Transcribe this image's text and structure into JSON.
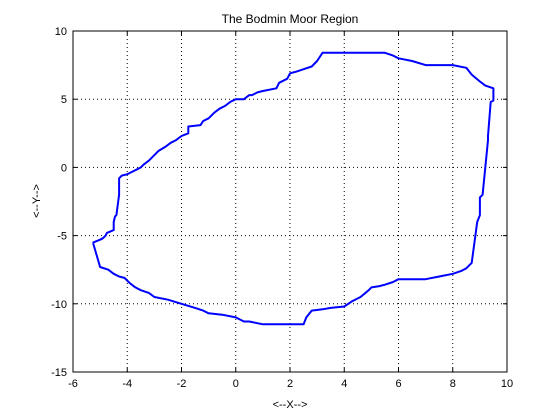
{
  "chart_data": {
    "type": "line",
    "title": "The Bodmin Moor Region",
    "xlabel": "<--X-->",
    "ylabel": "<--Y-->",
    "xlim": [
      -6,
      10
    ],
    "ylim": [
      -15,
      10
    ],
    "xticks": [
      -6,
      -4,
      -2,
      0,
      2,
      4,
      6,
      8,
      10
    ],
    "yticks": [
      -15,
      -10,
      -5,
      0,
      5,
      10
    ],
    "grid": true,
    "grid_style": "dotted",
    "series": [
      {
        "color": "#0000ff",
        "x": [
          -5.25,
          -5.25,
          -5.0,
          -4.9,
          -4.8,
          -4.75,
          -4.5,
          -4.5,
          -4.45,
          -4.4,
          -4.3,
          -4.3,
          -4.2,
          -4.0,
          -3.8,
          -3.6,
          -3.5,
          -3.4,
          -3.2,
          -3.0,
          -2.85,
          -2.6,
          -2.4,
          -2.2,
          -2.0,
          -1.75,
          -1.75,
          -1.3,
          -1.2,
          -1.0,
          -0.8,
          -0.6,
          -0.4,
          -0.2,
          0.0,
          0.3,
          0.5,
          0.6,
          0.8,
          1.0,
          1.5,
          1.6,
          1.9,
          2.0,
          2.2,
          2.5,
          2.8,
          3.0,
          3.2,
          3.5,
          4.0,
          5.0,
          5.5,
          5.8,
          6.0,
          6.5,
          7.0,
          8.0,
          8.5,
          8.7,
          9.0,
          9.2,
          9.5,
          9.5,
          9.4,
          9.3,
          9.3,
          9.2,
          9.1,
          9.0,
          9.0,
          8.9,
          8.7,
          8.6,
          8.5,
          8.3,
          8.0,
          7.5,
          7.0,
          6.5,
          6.0,
          5.8,
          5.5,
          5.3,
          5.0,
          4.9,
          4.6,
          4.3,
          4.0,
          3.5,
          3.2,
          2.8,
          2.6,
          2.5,
          2.0,
          1.5,
          1.0,
          0.5,
          0.3,
          0.0,
          -0.5,
          -1.0,
          -1.2,
          -1.5,
          -2.0,
          -2.5,
          -3.0,
          -3.2,
          -3.5,
          -3.7,
          -3.9,
          -4.1,
          -4.3,
          -4.5,
          -4.7,
          -5.0,
          -5.25
        ],
        "y": [
          -5.6,
          -5.5,
          -5.3,
          -5.2,
          -5.0,
          -4.8,
          -4.6,
          -4.0,
          -3.6,
          -3.5,
          -2.0,
          -0.8,
          -0.6,
          -0.5,
          -0.3,
          -0.1,
          0.0,
          0.2,
          0.5,
          0.9,
          1.2,
          1.5,
          1.8,
          2.0,
          2.3,
          2.5,
          3.0,
          3.1,
          3.4,
          3.6,
          4.0,
          4.3,
          4.5,
          4.8,
          5.0,
          5.0,
          5.3,
          5.3,
          5.5,
          5.6,
          5.8,
          6.2,
          6.5,
          6.9,
          7.0,
          7.2,
          7.4,
          7.8,
          8.4,
          8.4,
          8.4,
          8.4,
          8.4,
          8.2,
          8.0,
          7.8,
          7.5,
          7.5,
          7.3,
          6.8,
          6.3,
          6.0,
          5.8,
          4.9,
          4.8,
          2.3,
          2.0,
          0.0,
          -2.0,
          -2.2,
          -3.5,
          -4.0,
          -7.0,
          -7.2,
          -7.4,
          -7.6,
          -7.8,
          -8.0,
          -8.2,
          -8.2,
          -8.2,
          -8.4,
          -8.6,
          -8.7,
          -8.8,
          -9.0,
          -9.5,
          -9.8,
          -10.2,
          -10.3,
          -10.4,
          -10.5,
          -11.0,
          -11.5,
          -11.5,
          -11.5,
          -11.5,
          -11.3,
          -11.3,
          -11.0,
          -10.8,
          -10.7,
          -10.5,
          -10.3,
          -10.0,
          -9.7,
          -9.5,
          -9.2,
          -9.0,
          -8.8,
          -8.5,
          -8.1,
          -8.0,
          -7.8,
          -7.5,
          -7.3,
          -5.6
        ]
      }
    ]
  }
}
